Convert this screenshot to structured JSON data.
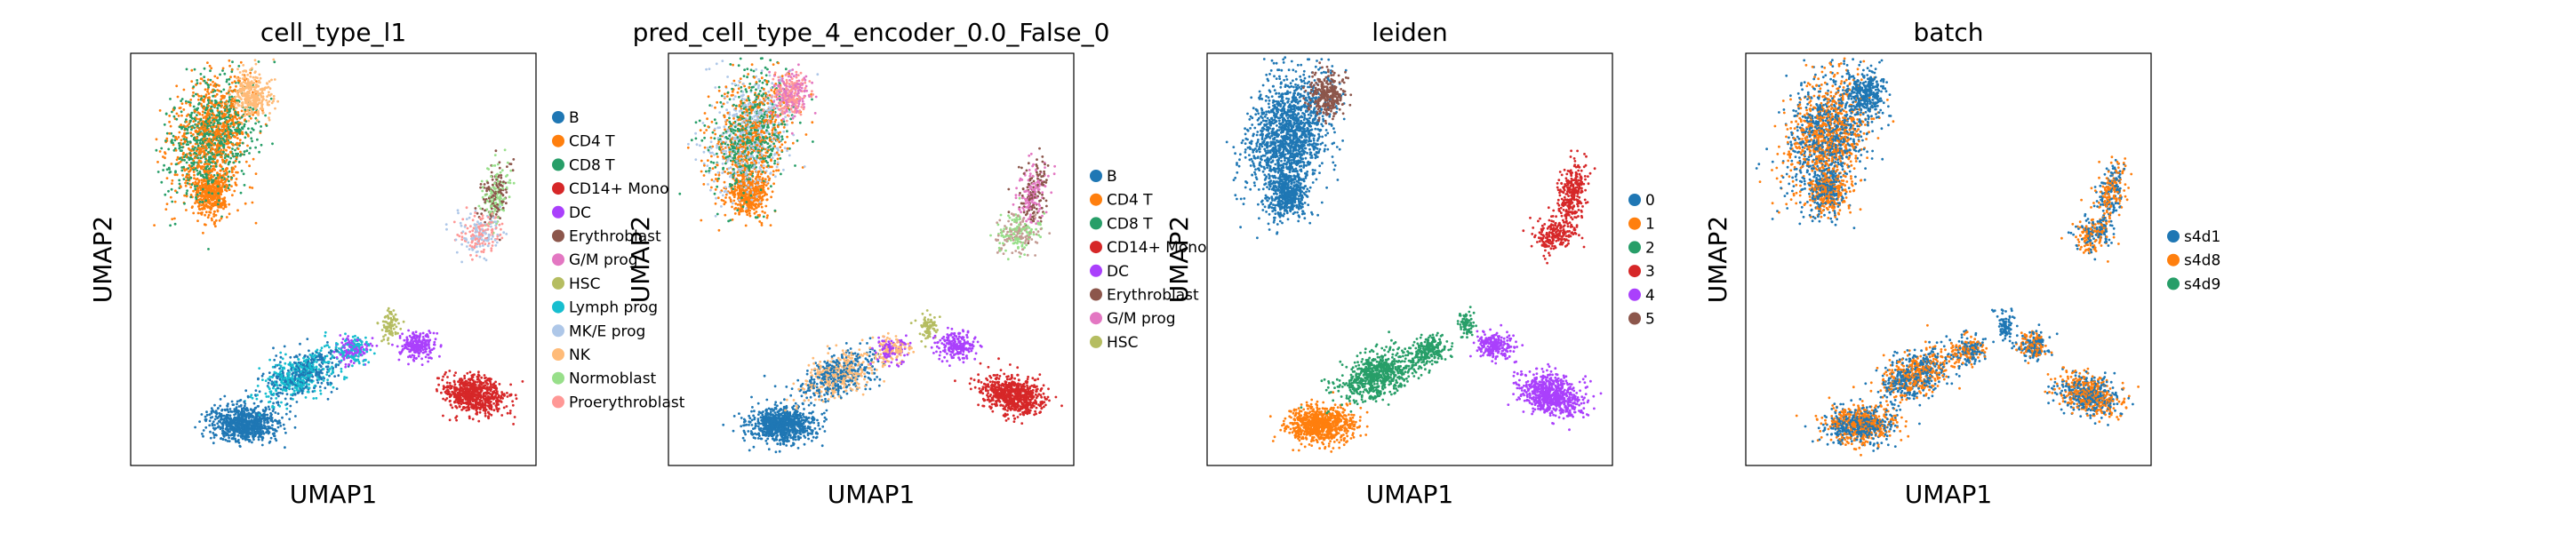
{
  "chart_data": [
    {
      "type": "scatter",
      "title": "cell_type_l1",
      "xlabel": "UMAP1",
      "ylabel": "UMAP2",
      "grid": false,
      "legend_position": "right",
      "legend": [
        {
          "label": "B",
          "color": "#1f77b4"
        },
        {
          "label": "CD4 T",
          "color": "#ff7f0e"
        },
        {
          "label": "CD8 T",
          "color": "#279e68"
        },
        {
          "label": "CD14+ Mono",
          "color": "#d62728"
        },
        {
          "label": "DC",
          "color": "#aa40fc"
        },
        {
          "label": "Erythroblast",
          "color": "#8c564b"
        },
        {
          "label": "G/M prog",
          "color": "#e377c2"
        },
        {
          "label": "HSC",
          "color": "#b5bd61"
        },
        {
          "label": "Lymph prog",
          "color": "#17becf"
        },
        {
          "label": "MK/E prog",
          "color": "#aec7e8"
        },
        {
          "label": "NK",
          "color": "#ffbb78"
        },
        {
          "label": "Normoblast",
          "color": "#98df8a"
        },
        {
          "label": "Proerythroblast",
          "color": "#ff9896"
        }
      ]
    },
    {
      "type": "scatter",
      "title": "pred_cell_type_4_encoder_0.0_False_0",
      "xlabel": "UMAP1",
      "ylabel": "UMAP2",
      "grid": false,
      "legend_position": "right",
      "legend": [
        {
          "label": "B",
          "color": "#1f77b4"
        },
        {
          "label": "CD4 T",
          "color": "#ff7f0e"
        },
        {
          "label": "CD8 T",
          "color": "#279e68"
        },
        {
          "label": "CD14+ Mono",
          "color": "#d62728"
        },
        {
          "label": "DC",
          "color": "#aa40fc"
        },
        {
          "label": "Erythroblast",
          "color": "#8c564b"
        },
        {
          "label": "G/M prog",
          "color": "#e377c2"
        },
        {
          "label": "HSC",
          "color": "#b5bd61"
        }
      ]
    },
    {
      "type": "scatter",
      "title": "leiden",
      "xlabel": "UMAP1",
      "ylabel": "UMAP2",
      "grid": false,
      "legend_position": "right",
      "legend": [
        {
          "label": "0",
          "color": "#1f77b4"
        },
        {
          "label": "1",
          "color": "#ff7f0e"
        },
        {
          "label": "2",
          "color": "#279e68"
        },
        {
          "label": "3",
          "color": "#d62728"
        },
        {
          "label": "4",
          "color": "#aa40fc"
        },
        {
          "label": "5",
          "color": "#8c564b"
        }
      ]
    },
    {
      "type": "scatter",
      "title": "batch",
      "xlabel": "UMAP1",
      "ylabel": "UMAP2",
      "grid": false,
      "legend_position": "right",
      "legend": [
        {
          "label": "s4d1",
          "color": "#1f77b4"
        },
        {
          "label": "s4d8",
          "color": "#ff7f0e"
        },
        {
          "label": "s4d9",
          "color": "#279e68"
        }
      ]
    }
  ]
}
